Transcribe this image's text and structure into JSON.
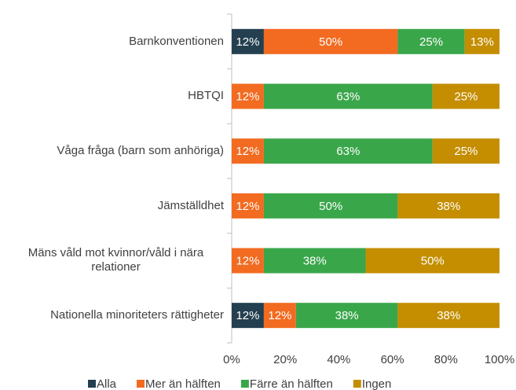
{
  "chart_data": {
    "type": "stacked_barh",
    "categories": [
      "Barnkonventionen",
      "HBTQI",
      "Våga fråga (barn som anhöriga)",
      "Jämställdhet",
      "Mäns våld mot kvinnor/våld i nära relationer",
      "Nationella minoriteters rättigheter"
    ],
    "series": [
      {
        "name": "Alla",
        "color": "#243f4f",
        "values": [
          12,
          null,
          null,
          null,
          null,
          12
        ],
        "value_labels": [
          "12%",
          null,
          null,
          null,
          null,
          "12%"
        ]
      },
      {
        "name": "Mer än hälften",
        "color": "#f26b21",
        "values": [
          50,
          12,
          12,
          12,
          12,
          12
        ],
        "value_labels": [
          "50%",
          "12%",
          "12%",
          "12%",
          "12%",
          "12%"
        ]
      },
      {
        "name": "Färre än hälften",
        "color": "#3aa64a",
        "values": [
          25,
          63,
          63,
          50,
          38,
          38
        ],
        "value_labels": [
          "25%",
          "63%",
          "63%",
          "50%",
          "38%",
          "38%"
        ]
      },
      {
        "name": "Ingen",
        "color": "#c48e00",
        "values": [
          13,
          25,
          25,
          38,
          50,
          38
        ],
        "value_labels": [
          "13%",
          "25%",
          "25%",
          "38%",
          "50%",
          "38%"
        ]
      }
    ],
    "xlim": [
      0,
      100
    ],
    "xticks": [
      {
        "value": 0,
        "label": "0%"
      },
      {
        "value": 20,
        "label": "20%"
      },
      {
        "value": 40,
        "label": "40%"
      },
      {
        "value": 60,
        "label": "60%"
      },
      {
        "value": 80,
        "label": "80%"
      },
      {
        "value": 100,
        "label": "100%"
      }
    ],
    "grid": false,
    "legend": "bottom"
  }
}
